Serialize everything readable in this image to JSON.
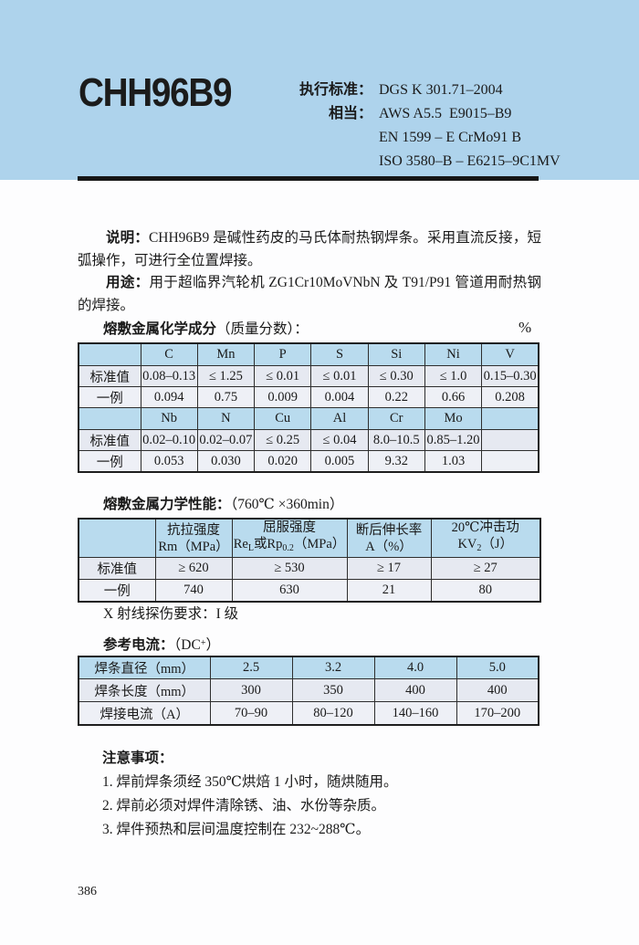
{
  "colors": {
    "band_blue": "#aed3ec",
    "table_header_blue": "#b9dbee",
    "row_shaded": "#e6e9f1",
    "row_light": "#eef0f6",
    "bar_black": "#161616"
  },
  "header": {
    "product": "CHH96B9",
    "standard_label": "执行标准：",
    "standard_value": "DGS K 301.71–2004",
    "equivalent_label": "相当：",
    "equivalent_values": [
      "AWS A5.5  E9015–B9",
      "EN 1599 – E CrMo91 B",
      "ISO 3580–B – E6215–9C1MV"
    ]
  },
  "description": {
    "label": "说明：",
    "text": "CHH96B9 是碱性药皮的马氏体耐热钢焊条。采用直流反接，短弧操作，可进行全位置焊接。",
    "usage_label": "用途：",
    "usage_text": "用于超临界汽轮机 ZG1Cr10MoVNbN 及 T91/P91 管道用耐热钢的焊接。"
  },
  "chemical": {
    "title_label": "熔敷金属化学成分",
    "title_paren": "（质量分数）：",
    "unit": "%",
    "row_labels": [
      "标准值",
      "一例"
    ],
    "part1": {
      "elements": [
        "C",
        "Mn",
        "P",
        "S",
        "Si",
        "Ni",
        "V"
      ],
      "standard": [
        "0.08–0.13",
        "≤ 1.25",
        "≤ 0.01",
        "≤ 0.01",
        "≤ 0.30",
        "≤ 1.0",
        "0.15–0.30"
      ],
      "example": [
        "0.094",
        "0.75",
        "0.009",
        "0.004",
        "0.22",
        "0.66",
        "0.208"
      ]
    },
    "part2": {
      "elements": [
        "Nb",
        "N",
        "Cu",
        "Al",
        "Cr",
        "Mo",
        ""
      ],
      "standard": [
        "0.02–0.10",
        "0.02–0.07",
        "≤ 0.25",
        "≤ 0.04",
        "8.0–10.5",
        "0.85–1.20",
        ""
      ],
      "example": [
        "0.053",
        "0.030",
        "0.020",
        "0.005",
        "9.32",
        "1.03",
        ""
      ]
    }
  },
  "mechanical": {
    "title_label": "熔敷金属力学性能：",
    "condition": "（760℃ ×360min）",
    "row_labels": [
      "标准值",
      "一例"
    ],
    "columns": [
      {
        "line1": "抗拉强度",
        "line2": [
          [
            "Rm（MPa）",
            ""
          ]
        ]
      },
      {
        "line1": "屈服强度",
        "line2": [
          [
            "Re",
            ""
          ],
          [
            "L",
            "sub"
          ],
          [
            "或Rp",
            ""
          ],
          [
            "0.2",
            "sub"
          ],
          [
            "（MPa）",
            ""
          ]
        ]
      },
      {
        "line1": "断后伸长率",
        "line2": [
          [
            "A（%）",
            ""
          ]
        ]
      },
      {
        "line1": "20℃冲击功",
        "line2": [
          [
            "KV",
            ""
          ],
          [
            "2",
            "sub"
          ],
          [
            "（J）",
            ""
          ]
        ]
      }
    ],
    "standard": [
      "≥ 620",
      "≥ 530",
      "≥ 17",
      "≥ 27"
    ],
    "example": [
      "740",
      "630",
      "21",
      "80"
    ],
    "xray_note": "X 射线探伤要求：I 级"
  },
  "current": {
    "title_label": "参考电流：",
    "condition_parts": [
      [
        "（DC",
        ""
      ],
      [
        "+",
        "sup"
      ],
      [
        "）",
        ""
      ]
    ],
    "rows": [
      {
        "label": "焊条直径（mm）",
        "values": [
          "2.5",
          "3.2",
          "4.0",
          "5.0"
        ],
        "header": true
      },
      {
        "label": "焊条长度（mm）",
        "values": [
          "300",
          "350",
          "400",
          "400"
        ],
        "header": false
      },
      {
        "label": "焊接电流（A）",
        "values": [
          "70–90",
          "80–120",
          "140–160",
          "170–200"
        ],
        "header": false
      }
    ]
  },
  "notes": {
    "title": "注意事项：",
    "items": [
      "1. 焊前焊条须经 350℃烘焙 1 小时，随烘随用。",
      "2. 焊前必须对焊件清除锈、油、水份等杂质。",
      "3. 焊件预热和层间温度控制在 232~288℃。"
    ]
  },
  "page": {
    "number": "386"
  }
}
